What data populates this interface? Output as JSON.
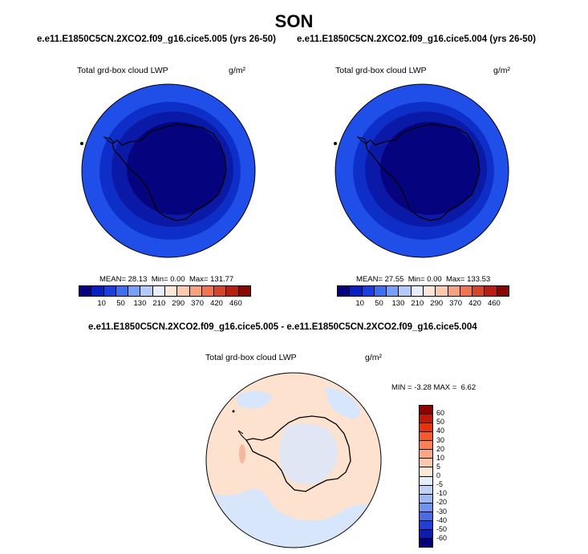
{
  "title": "SON",
  "panels": [
    {
      "subtitle": "e.e11.E1850C5CN.2XCO2.f09_g16.cice5.005 (yrs 26-50)",
      "variable": "Total grd-box cloud LWP",
      "units": "g/m²",
      "mean_label": "MEAN=",
      "mean": "28.13",
      "min_label": "Min=",
      "min": "0.00",
      "max_label": "Max=",
      "max": "131.77"
    },
    {
      "subtitle": "e.e11.E1850C5CN.2XCO2.f09_g16.cice5.004 (yrs 26-50)",
      "variable": "Total grd-box cloud LWP",
      "units": "g/m²",
      "mean_label": "MEAN=",
      "mean": "27.55",
      "min_label": "Min=",
      "min": "0.00",
      "max_label": "Max=",
      "max": "133.53"
    }
  ],
  "colorbar": {
    "labels": [
      "10",
      "50",
      "130",
      "210",
      "290",
      "370",
      "420",
      "460"
    ],
    "colors": [
      "#08007f",
      "#0a1fbf",
      "#1a3fdf",
      "#3f6fef",
      "#78a0f6",
      "#b4cbf9",
      "#e8eefc",
      "#fde7d9",
      "#fbc9ad",
      "#f7a27f",
      "#ef7550",
      "#d8442a",
      "#b61f12",
      "#860800"
    ]
  },
  "diff": {
    "subtitle": "e.e11.E1850C5CN.2XCO2.f09_g16.cice5.005 - e.e11.E1850C5CN.2XCO2.f09_g16.cice5.004",
    "variable": "Total grd-box cloud LWP",
    "units": "g/m²",
    "minmax_min_label": "MIN =",
    "min": "-3.28",
    "minmax_max_label": "MAX =",
    "max": "6.62",
    "colorbar_labels": [
      "60",
      "50",
      "40",
      "30",
      "20",
      "10",
      "5",
      "0",
      "-5",
      "-10",
      "-20",
      "-30",
      "-40",
      "-50",
      "-60"
    ],
    "colorbar_colors": [
      "#8e0000",
      "#c41706",
      "#e23512",
      "#f45a2a",
      "#f98156",
      "#fba783",
      "#fcc9ad",
      "#fde8d8",
      "#e5eefc",
      "#bfd3f7",
      "#9bb8f3",
      "#6f92ec",
      "#4a6be6",
      "#243fd5",
      "#0c1cb3",
      "#05007a"
    ]
  },
  "palette": {
    "field_outer": "#1f4fe8",
    "field_mid": "#0d2fc7",
    "field_inner": "#0a1aa6",
    "field_center": "#06037f",
    "diff_positive": "#fde3cf",
    "diff_negative": "#d8e6fb",
    "diff_hotspot": "#f6b79b"
  }
}
